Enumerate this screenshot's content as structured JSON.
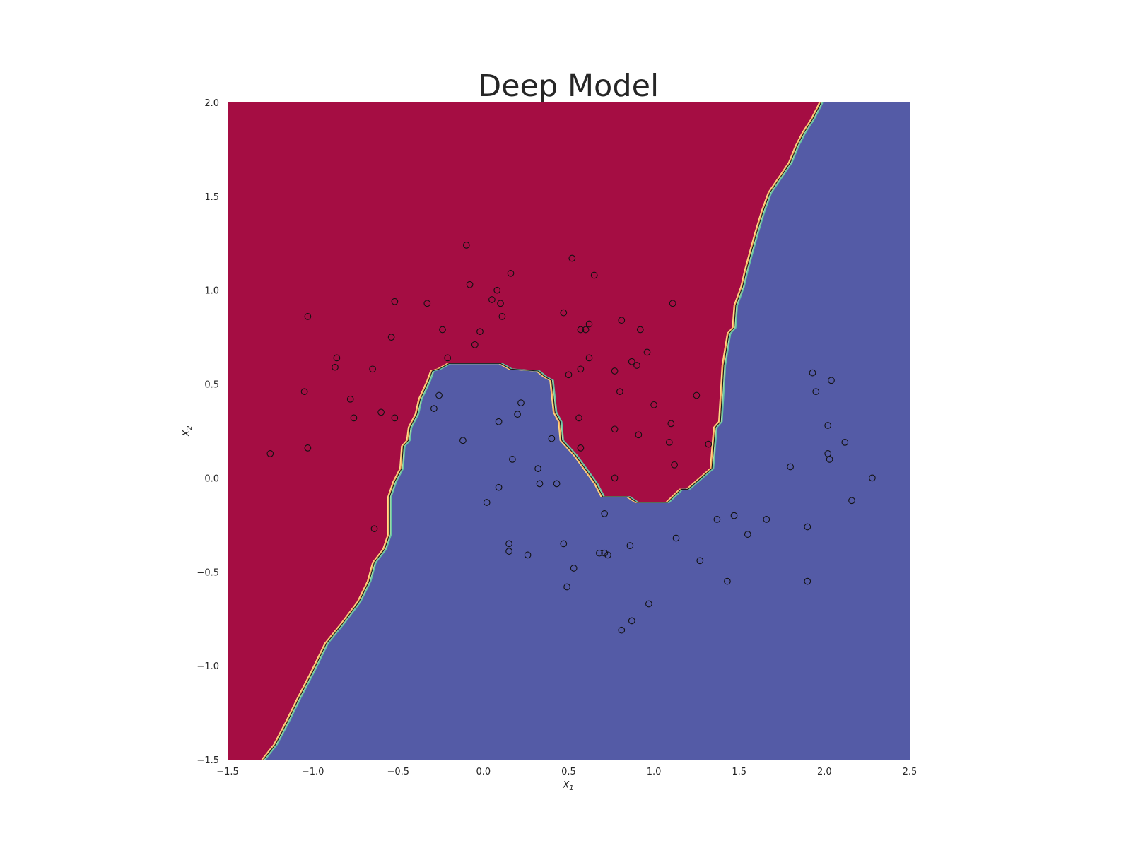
{
  "chart_data": {
    "type": "scatter",
    "title": "Deep Model",
    "xlabel": "X",
    "xlabel_sub": "1",
    "ylabel": "X",
    "ylabel_sub": "2",
    "xlim": [
      -1.5,
      2.5
    ],
    "ylim": [
      -1.5,
      2.0
    ],
    "xticks": [
      -1.5,
      -1.0,
      -0.5,
      0.0,
      0.5,
      1.0,
      1.5,
      2.0,
      2.5
    ],
    "yticks": [
      -1.5,
      -1.0,
      -0.5,
      0.0,
      0.5,
      1.0,
      1.5,
      2.0
    ],
    "xtick_labels": [
      "−1.5",
      "−1.0",
      "−0.5",
      "0.0",
      "0.5",
      "1.0",
      "1.5",
      "2.0",
      "2.5"
    ],
    "ytick_labels": [
      "−1.5",
      "−1.0",
      "−0.5",
      "0.0",
      "0.5",
      "1.0",
      "1.5",
      "2.0"
    ],
    "grid": false,
    "legend": "none",
    "colors": {
      "class_upper_region": "#a50d43",
      "class_lower_region": "#545ba6",
      "boundary_bands": [
        "#fee08b",
        "#fdae61",
        "#abdda4",
        "#66c2a5",
        "#1a1a1a"
      ],
      "point_edge": "#111111"
    },
    "decision_boundary": [
      [
        -1.29,
        -1.5
      ],
      [
        -1.22,
        -1.42
      ],
      [
        -1.15,
        -1.3
      ],
      [
        -1.08,
        -1.17
      ],
      [
        -1.0,
        -1.03
      ],
      [
        -0.92,
        -0.88
      ],
      [
        -0.83,
        -0.78
      ],
      [
        -0.73,
        -0.66
      ],
      [
        -0.67,
        -0.55
      ],
      [
        -0.64,
        -0.45
      ],
      [
        -0.58,
        -0.38
      ],
      [
        -0.55,
        -0.3
      ],
      [
        -0.55,
        -0.1
      ],
      [
        -0.52,
        -0.02
      ],
      [
        -0.48,
        0.05
      ],
      [
        -0.47,
        0.17
      ],
      [
        -0.44,
        0.2
      ],
      [
        -0.43,
        0.27
      ],
      [
        -0.39,
        0.34
      ],
      [
        -0.37,
        0.42
      ],
      [
        -0.32,
        0.52
      ],
      [
        -0.3,
        0.57
      ],
      [
        -0.26,
        0.58
      ],
      [
        -0.2,
        0.61
      ],
      [
        0.1,
        0.61
      ],
      [
        0.16,
        0.58
      ],
      [
        0.32,
        0.57
      ],
      [
        0.36,
        0.54
      ],
      [
        0.4,
        0.52
      ],
      [
        0.42,
        0.35
      ],
      [
        0.45,
        0.3
      ],
      [
        0.46,
        0.2
      ],
      [
        0.54,
        0.12
      ],
      [
        0.62,
        0.02
      ],
      [
        0.66,
        -0.03
      ],
      [
        0.7,
        -0.1
      ],
      [
        0.85,
        -0.1
      ],
      [
        0.9,
        -0.13
      ],
      [
        1.08,
        -0.13
      ],
      [
        1.16,
        -0.06
      ],
      [
        1.2,
        -0.06
      ],
      [
        1.34,
        0.05
      ],
      [
        1.36,
        0.27
      ],
      [
        1.39,
        0.3
      ],
      [
        1.41,
        0.6
      ],
      [
        1.44,
        0.77
      ],
      [
        1.47,
        0.8
      ],
      [
        1.48,
        0.92
      ],
      [
        1.52,
        1.02
      ],
      [
        1.54,
        1.1
      ],
      [
        1.57,
        1.2
      ],
      [
        1.6,
        1.3
      ],
      [
        1.64,
        1.42
      ],
      [
        1.68,
        1.52
      ],
      [
        1.74,
        1.6
      ],
      [
        1.8,
        1.68
      ],
      [
        1.84,
        1.77
      ],
      [
        1.88,
        1.84
      ],
      [
        1.93,
        1.91
      ],
      [
        1.97,
        1.98
      ],
      [
        1.98,
        2.0
      ]
    ],
    "points": [
      [
        -0.1,
        1.24
      ],
      [
        0.52,
        1.17
      ],
      [
        0.16,
        1.09
      ],
      [
        0.65,
        1.08
      ],
      [
        -0.08,
        1.03
      ],
      [
        0.08,
        1.0
      ],
      [
        -0.52,
        0.94
      ],
      [
        -0.33,
        0.93
      ],
      [
        0.05,
        0.95
      ],
      [
        0.1,
        0.93
      ],
      [
        1.11,
        0.93
      ],
      [
        -1.03,
        0.86
      ],
      [
        0.11,
        0.86
      ],
      [
        0.47,
        0.88
      ],
      [
        0.81,
        0.84
      ],
      [
        0.62,
        0.82
      ],
      [
        0.57,
        0.79
      ],
      [
        0.6,
        0.79
      ],
      [
        0.92,
        0.79
      ],
      [
        -0.24,
        0.79
      ],
      [
        -0.54,
        0.75
      ],
      [
        -0.02,
        0.78
      ],
      [
        -0.05,
        0.71
      ],
      [
        0.96,
        0.67
      ],
      [
        -0.86,
        0.64
      ],
      [
        -0.21,
        0.64
      ],
      [
        0.62,
        0.64
      ],
      [
        0.87,
        0.62
      ],
      [
        0.9,
        0.6
      ],
      [
        -0.87,
        0.59
      ],
      [
        -0.65,
        0.58
      ],
      [
        0.57,
        0.58
      ],
      [
        0.77,
        0.57
      ],
      [
        0.5,
        0.55
      ],
      [
        1.93,
        0.56
      ],
      [
        2.04,
        0.52
      ],
      [
        -1.05,
        0.46
      ],
      [
        0.8,
        0.46
      ],
      [
        1.95,
        0.46
      ],
      [
        -0.26,
        0.44
      ],
      [
        1.25,
        0.44
      ],
      [
        -0.78,
        0.42
      ],
      [
        0.22,
        0.4
      ],
      [
        1.0,
        0.39
      ],
      [
        -0.29,
        0.37
      ],
      [
        -0.6,
        0.35
      ],
      [
        0.2,
        0.34
      ],
      [
        -0.76,
        0.32
      ],
      [
        -0.52,
        0.32
      ],
      [
        0.56,
        0.32
      ],
      [
        0.09,
        0.3
      ],
      [
        1.1,
        0.29
      ],
      [
        2.02,
        0.28
      ],
      [
        0.77,
        0.26
      ],
      [
        0.91,
        0.23
      ],
      [
        -0.12,
        0.2
      ],
      [
        0.4,
        0.21
      ],
      [
        1.09,
        0.19
      ],
      [
        1.32,
        0.18
      ],
      [
        2.12,
        0.19
      ],
      [
        -1.03,
        0.16
      ],
      [
        0.57,
        0.16
      ],
      [
        -1.25,
        0.13
      ],
      [
        2.02,
        0.13
      ],
      [
        0.17,
        0.1
      ],
      [
        2.03,
        0.1
      ],
      [
        1.12,
        0.07
      ],
      [
        1.8,
        0.06
      ],
      [
        0.32,
        0.05
      ],
      [
        0.77,
        0.0
      ],
      [
        2.28,
        0.0
      ],
      [
        0.33,
        -0.03
      ],
      [
        0.43,
        -0.03
      ],
      [
        0.09,
        -0.05
      ],
      [
        0.02,
        -0.13
      ],
      [
        2.16,
        -0.12
      ],
      [
        0.71,
        -0.19
      ],
      [
        1.47,
        -0.2
      ],
      [
        1.37,
        -0.22
      ],
      [
        1.66,
        -0.22
      ],
      [
        -0.64,
        -0.27
      ],
      [
        1.9,
        -0.26
      ],
      [
        1.13,
        -0.32
      ],
      [
        1.55,
        -0.3
      ],
      [
        0.15,
        -0.35
      ],
      [
        0.47,
        -0.35
      ],
      [
        0.86,
        -0.36
      ],
      [
        0.15,
        -0.39
      ],
      [
        0.26,
        -0.41
      ],
      [
        0.68,
        -0.4
      ],
      [
        0.71,
        -0.4
      ],
      [
        0.73,
        -0.41
      ],
      [
        1.27,
        -0.44
      ],
      [
        0.53,
        -0.48
      ],
      [
        1.43,
        -0.55
      ],
      [
        1.9,
        -0.55
      ],
      [
        0.49,
        -0.58
      ],
      [
        0.97,
        -0.67
      ],
      [
        0.87,
        -0.76
      ],
      [
        0.81,
        -0.81
      ]
    ]
  }
}
